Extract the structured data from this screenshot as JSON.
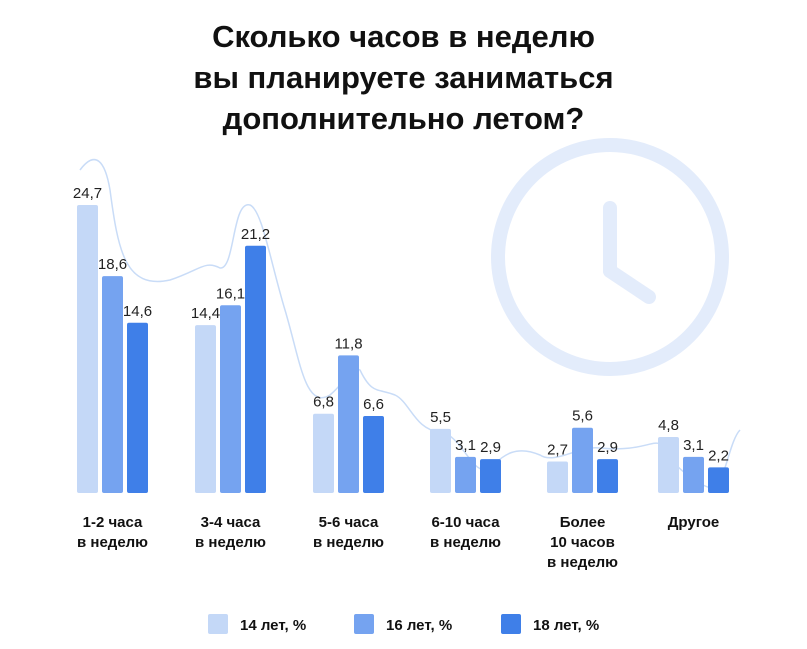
{
  "chart_data": {
    "type": "bar",
    "title_lines": [
      "Сколько часов в неделю",
      "вы планируете заниматься",
      "дополнительно летом?"
    ],
    "categories": [
      [
        "1-2 часа",
        "в неделю"
      ],
      [
        "3-4 часа",
        "в неделю"
      ],
      [
        "5-6 часа",
        "в неделю"
      ],
      [
        "6-10 часа",
        "в неделю"
      ],
      [
        "Более",
        "10 часов",
        "в неделю"
      ],
      [
        "Другое"
      ]
    ],
    "series": [
      {
        "name": "14 лет, %",
        "color": "#c4d8f7",
        "values": [
          24.7,
          14.4,
          6.8,
          5.5,
          2.7,
          4.8
        ],
        "labels": [
          "24,7",
          "14,4",
          "6,8",
          "5,5",
          "2,7",
          "4,8"
        ]
      },
      {
        "name": "16 лет, %",
        "color": "#75a3f0",
        "values": [
          18.6,
          16.1,
          11.8,
          3.1,
          5.6,
          3.1
        ],
        "labels": [
          "18,6",
          "16,1",
          "11,8",
          "3,1",
          "5,6",
          "3,1"
        ]
      },
      {
        "name": "18 лет, %",
        "color": "#3f7fe8",
        "values": [
          14.6,
          21.2,
          6.6,
          2.9,
          2.9,
          2.2
        ],
        "labels": [
          "14,6",
          "21,2",
          "6,6",
          "2,9",
          "2,9",
          "2,2"
        ]
      }
    ],
    "ylim": [
      0,
      24.7
    ],
    "grid": false,
    "legend_position": "bottom-center",
    "decoration": {
      "icon": "clock-icon",
      "line_color": "#c9dcf7",
      "clock_color": "#e3ecfb"
    }
  }
}
